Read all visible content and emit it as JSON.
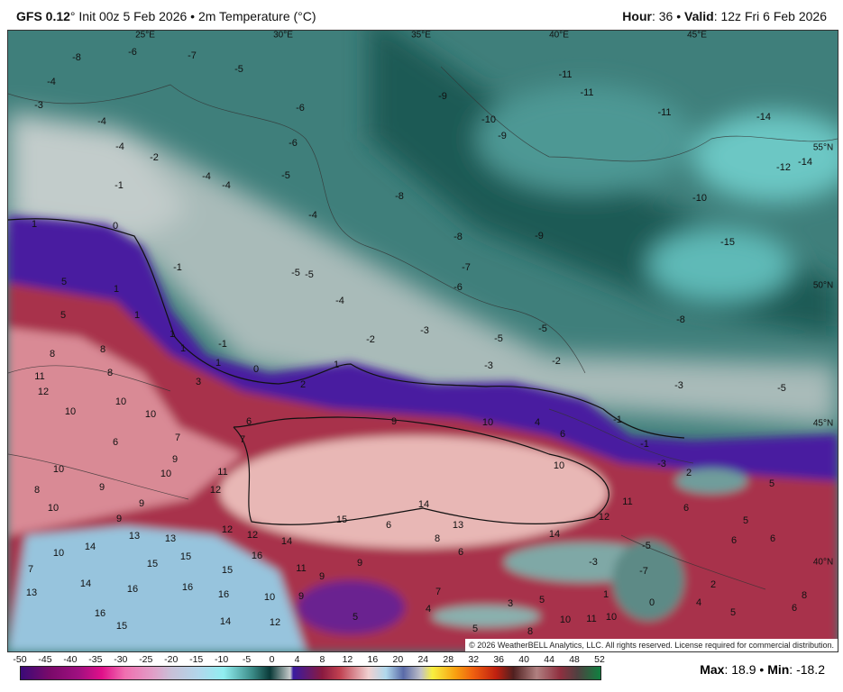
{
  "header": {
    "model": "GFS 0.12",
    "init": "° Init 00z 5 Feb 2026 • 2m Temperature (°C)",
    "hour_label": "Hour",
    "hour": ": 36 • ",
    "valid_label": "Valid",
    "valid": ": 12z Fri 6 Feb 2026"
  },
  "map": {
    "lon_labels": [
      "25°E",
      "30°E",
      "35°E",
      "40°E",
      "45°E"
    ],
    "lat_labels": [
      "55°N",
      "50°N",
      "45°N",
      "40°N"
    ],
    "temperature_labels": [
      "-8",
      "-6",
      "-7",
      "-5",
      "-4",
      "-3",
      "-4",
      "-4",
      "-2",
      "-1",
      "-4",
      "-4",
      "-6",
      "-5",
      "-6",
      "-4",
      "-8",
      "-9",
      "-10",
      "-9",
      "-11",
      "-11",
      "-11",
      "-14",
      "-12",
      "-14",
      "-10",
      "-15",
      "-8",
      "-7",
      "-6",
      "-9",
      "-5",
      "-5",
      "-4",
      "-2",
      "-3",
      "-5",
      "-5",
      "-3",
      "-2",
      "-8",
      "-3",
      "-5",
      "1",
      "0",
      "-1",
      "5",
      "1",
      "5",
      "1",
      "1",
      "-1",
      "8",
      "8",
      "1",
      "1",
      "0",
      "1",
      "11",
      "12",
      "8",
      "3",
      "2",
      "10",
      "10",
      "10",
      "6",
      "9",
      "10",
      "4",
      "-1",
      "-1",
      "6",
      "7",
      "7",
      "6",
      "-3",
      "2",
      "5",
      "10",
      "9",
      "10",
      "11",
      "10",
      "8",
      "9",
      "12",
      "10",
      "9",
      "9",
      "11",
      "6",
      "5",
      "14",
      "15",
      "6",
      "12",
      "13",
      "12",
      "12",
      "13",
      "13",
      "8",
      "14",
      "14",
      "14",
      "6",
      "6",
      "10",
      "15",
      "16",
      "15",
      "6",
      "-5",
      "7",
      "15",
      "11",
      "9",
      "9",
      "-3",
      "-7",
      "14",
      "16",
      "16",
      "16",
      "10",
      "9",
      "7",
      "4",
      "3",
      "5",
      "1",
      "0",
      "4",
      "5",
      "2",
      "6",
      "8",
      "13",
      "16",
      "15",
      "14",
      "12",
      "5",
      "5",
      "10",
      "11",
      "10",
      "8"
    ],
    "copyright": "© 2026 WeatherBELL Analytics, LLC. All rights reserved. License required for commercial distribution."
  },
  "colorbar": {
    "ticks": [
      "-50",
      "-45",
      "-40",
      "-35",
      "-30",
      "-25",
      "-20",
      "-15",
      "-10",
      "-5",
      "0",
      "4",
      "8",
      "12",
      "16",
      "20",
      "24",
      "28",
      "32",
      "36",
      "40",
      "44",
      "48",
      "52"
    ]
  },
  "stats": {
    "max_label": "Max",
    "max": ": 18.9 • ",
    "min_label": "Min",
    "min": ": -18.2"
  }
}
